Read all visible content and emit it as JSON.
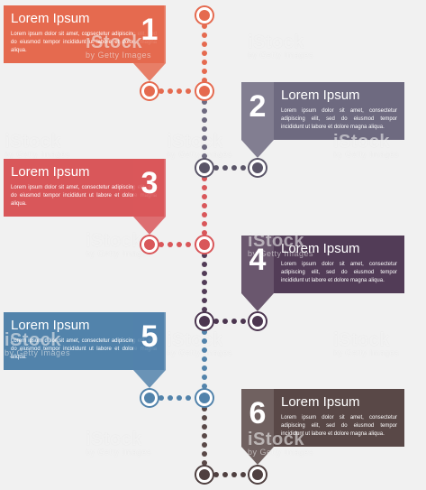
{
  "colors": {
    "step1": "#e56a4f",
    "step2": "#6e6a80",
    "step3": "#d9575a",
    "step4": "#523c57",
    "step5": "#5283ab",
    "step6": "#594847",
    "connector_1_2": "#5a5568",
    "connector_3_4": "#4c3650",
    "connector_5_6": "#4f4040"
  },
  "steps": [
    {
      "number": "1",
      "title": "Lorem Ipsum",
      "body": "Lorem ipsum dolor sit amet, consectetur adipiscing elit, sed do eiusmod tempor incididunt ut labore et dolore magna aliqua."
    },
    {
      "number": "2",
      "title": "Lorem Ipsum",
      "body": "Lorem ipsum dolor sit amet, consectetur adipiscing elit, sed do eiusmod tempor incididunt ut labore et dolore magna aliqua."
    },
    {
      "number": "3",
      "title": "Lorem Ipsum",
      "body": "Lorem ipsum dolor sit amet, consectetur adipiscing elit, sed do eiusmod tempor incididunt ut labore et dolore magna aliqua."
    },
    {
      "number": "4",
      "title": "Lorem Ipsum",
      "body": "Lorem ipsum dolor sit amet, consectetur adipiscing elit, sed do eiusmod tempor incididunt ut labore et dolore magna aliqua."
    },
    {
      "number": "5",
      "title": "Lorem Ipsum",
      "body": "Lorem ipsum dolor sit amet, consectetur adipiscing elit, sed do eiusmod tempor incididunt ut labore et dolore magna aliqua."
    },
    {
      "number": "6",
      "title": "Lorem Ipsum",
      "body": "Lorem ipsum dolor sit amet, consectetur adipiscing elit, sed do eiusmod tempor incididunt ut labore et dolore magna aliqua."
    }
  ],
  "watermark": {
    "brand": "iStock",
    "credit": "by Getty Images"
  }
}
